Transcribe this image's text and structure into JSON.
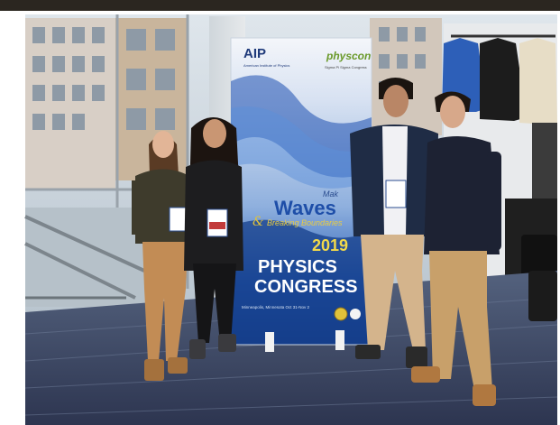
{
  "banner": {
    "logo_left": "AIP",
    "logo_left_sub": "American Institute of Physics",
    "logo_right": "physcon",
    "logo_right_sub": "Sigma Pi Sigma Congress",
    "tagline_partial": "Mak",
    "tagline_waves": "Waves",
    "tagline_ampersand": "&",
    "tagline_breaking": "Breaking Boundaries",
    "year_title": "2019",
    "title_line1": "PHYSICS",
    "title_line2": "CONGRESS",
    "location_line": "Minneapolis, Minnesota Oct 31-Nov 2"
  },
  "colors": {
    "banner_blue": "#1f4fa8",
    "banner_yellow": "#f2d94a",
    "carpet": "#3b4a68",
    "sweater_navy": "#1d2233",
    "khaki": "#c8a06a"
  }
}
